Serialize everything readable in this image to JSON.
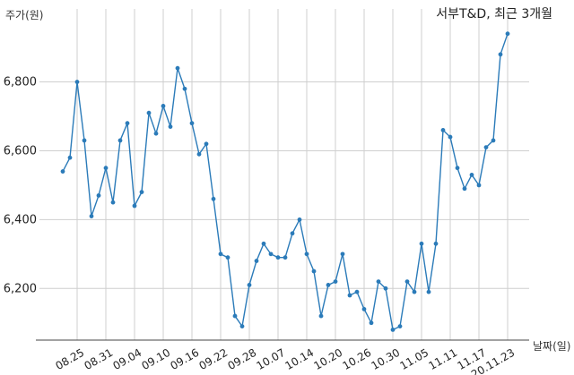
{
  "chart_data": {
    "type": "line",
    "title": "서부T&D, 최근 3개월",
    "ylabel": "주가(원)",
    "xlabel": "날짜(일)",
    "ylim": [
      6050,
      6960
    ],
    "yticks": [
      6200,
      6400,
      6600,
      6800
    ],
    "ytick_labels": [
      "6,200",
      "6,400",
      "6,600",
      "6,800"
    ],
    "xtick_labels": [
      "08.25",
      "08.31",
      "09.04",
      "09.10",
      "09.16",
      "09.22",
      "09.28",
      "10.07",
      "10.14",
      "10.20",
      "10.26",
      "10.30",
      "11.05",
      "11.11",
      "11.17",
      "20.11.23"
    ],
    "xtick_index": [
      2,
      6,
      10,
      14,
      18,
      22,
      26,
      30,
      34,
      38,
      42,
      46,
      50,
      54,
      58,
      62
    ],
    "grid": true,
    "series": [
      {
        "color": "#2b7bb9",
        "values": [
          6540,
          6580,
          6800,
          6630,
          6410,
          6470,
          6550,
          6450,
          6630,
          6680,
          6440,
          6480,
          6710,
          6650,
          6730,
          6670,
          6840,
          6780,
          6680,
          6590,
          6620,
          6460,
          6300,
          6290,
          6120,
          6090,
          6210,
          6280,
          6330,
          6300,
          6290,
          6290,
          6360,
          6400,
          6300,
          6250,
          6120,
          6210,
          6220,
          6300,
          6180,
          6190,
          6140,
          6100,
          6220,
          6200,
          6080,
          6090,
          6220,
          6190,
          6330,
          6190,
          6330,
          6660,
          6640,
          6550,
          6490,
          6530,
          6500,
          6610,
          6630,
          6880,
          6940
        ]
      }
    ]
  }
}
